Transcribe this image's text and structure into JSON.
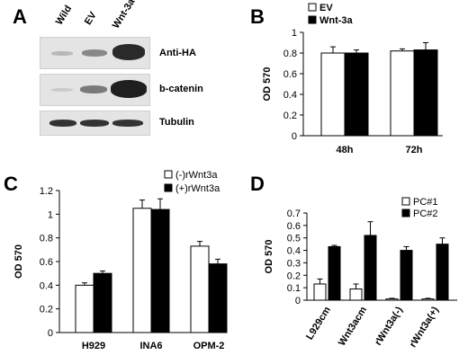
{
  "panels": {
    "A": "A",
    "B": "B",
    "C": "C",
    "D": "D"
  },
  "western": {
    "lanes": [
      "Wild",
      "EV",
      "Wnt-3a"
    ],
    "rows": [
      "Anti-HA",
      "b-catenin",
      "Tubulin"
    ]
  },
  "chart_data": [
    {
      "panel": "B",
      "type": "bar",
      "categories": [
        "48h",
        "72h"
      ],
      "series": [
        {
          "name": "EV",
          "color": "#ffffff",
          "values": [
            0.8,
            0.82
          ],
          "errors": [
            0.06,
            0.02
          ]
        },
        {
          "name": "Wnt-3a",
          "color": "#000000",
          "values": [
            0.8,
            0.83
          ],
          "errors": [
            0.03,
            0.07
          ]
        }
      ],
      "ylabel": "OD 570",
      "ylim": [
        0,
        1
      ],
      "yticks": [
        "0",
        "0.2",
        "0.4",
        "0.6",
        "0.8",
        "1"
      ],
      "legend": "top-left"
    },
    {
      "panel": "C",
      "type": "bar",
      "categories": [
        "H929",
        "INA6",
        "OPM-2"
      ],
      "series": [
        {
          "name": "(-)rWnt3a",
          "color": "#ffffff",
          "values": [
            0.4,
            1.05,
            0.73
          ],
          "errors": [
            0.02,
            0.07,
            0.04
          ]
        },
        {
          "name": "(+)rWnt3a",
          "color": "#000000",
          "values": [
            0.5,
            1.04,
            0.58
          ],
          "errors": [
            0.02,
            0.09,
            0.04
          ]
        }
      ],
      "ylabel": "OD  570",
      "ylim": [
        0,
        1.2
      ],
      "yticks": [
        "0",
        "0.2",
        "0.4",
        "0.6",
        "0.8",
        "1",
        "1.2"
      ],
      "legend": "top-right"
    },
    {
      "panel": "D",
      "type": "bar",
      "categories": [
        "L929cm",
        "Wnt3acm",
        "rWnt3a(-)",
        "rWnt3a(+)"
      ],
      "series": [
        {
          "name": "PC#1",
          "color": "#ffffff",
          "values": [
            0.13,
            0.09,
            0.01,
            0.01
          ],
          "errors": [
            0.04,
            0.04,
            0.005,
            0.005
          ]
        },
        {
          "name": "PC#2",
          "color": "#000000",
          "values": [
            0.43,
            0.52,
            0.4,
            0.45
          ],
          "errors": [
            0.01,
            0.11,
            0.03,
            0.05
          ]
        }
      ],
      "ylabel": "OD 570",
      "ylim": [
        0,
        0.7
      ],
      "yticks": [
        "0",
        "0.1",
        "0.2",
        "0.3",
        "0.4",
        "0.5",
        "0.6",
        "0.7"
      ],
      "legend": "top-left"
    }
  ]
}
